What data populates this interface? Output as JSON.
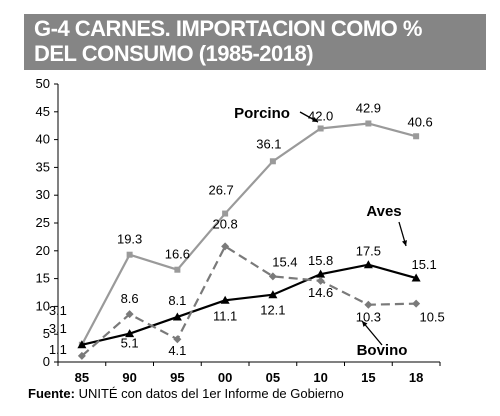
{
  "chart_data": {
    "type": "line",
    "title_lines": [
      "G-4 CARNES. IMPORTACION COMO %",
      "DEL CONSUMO (1985-2018)"
    ],
    "categories": [
      "85",
      "90",
      "95",
      "00",
      "05",
      "10",
      "15",
      "18"
    ],
    "ylim": [
      0,
      50
    ],
    "yticks": [
      0,
      5,
      10,
      15,
      20,
      25,
      30,
      35,
      40,
      45,
      50
    ],
    "grid": false,
    "series": [
      {
        "name": "Porcino",
        "color": "#9a9a9a",
        "style": "solid",
        "marker": "square",
        "values": [
          3.1,
          19.3,
          16.6,
          26.7,
          36.1,
          42.0,
          42.9,
          40.6
        ],
        "labels": [
          "3.1",
          "19.3",
          "16.6",
          "26.7",
          "36.1",
          "42.0",
          "42.9",
          "40.6"
        ]
      },
      {
        "name": "Aves",
        "color": "#000000",
        "style": "solid",
        "marker": "triangle",
        "values": [
          3.1,
          5.1,
          8.1,
          11.1,
          12.1,
          15.8,
          17.5,
          15.1
        ],
        "labels": [
          "3.1",
          "5.1",
          "8.1",
          "11.1",
          "12.1",
          "15.8",
          "17.5",
          "15.1"
        ]
      },
      {
        "name": "Bovino",
        "color": "#7a7a7a",
        "style": "dashed",
        "marker": "diamond",
        "values": [
          1.1,
          8.6,
          4.1,
          20.8,
          15.4,
          14.6,
          10.3,
          10.5
        ],
        "labels": [
          "1.1",
          "8.6",
          "4.1",
          "20.8",
          "15.4",
          "14.6",
          "10.3",
          "10.5"
        ]
      }
    ]
  },
  "footer": {
    "label": "Fuente:",
    "text": " UNITÉ con datos del 1er Informe de Gobierno"
  }
}
